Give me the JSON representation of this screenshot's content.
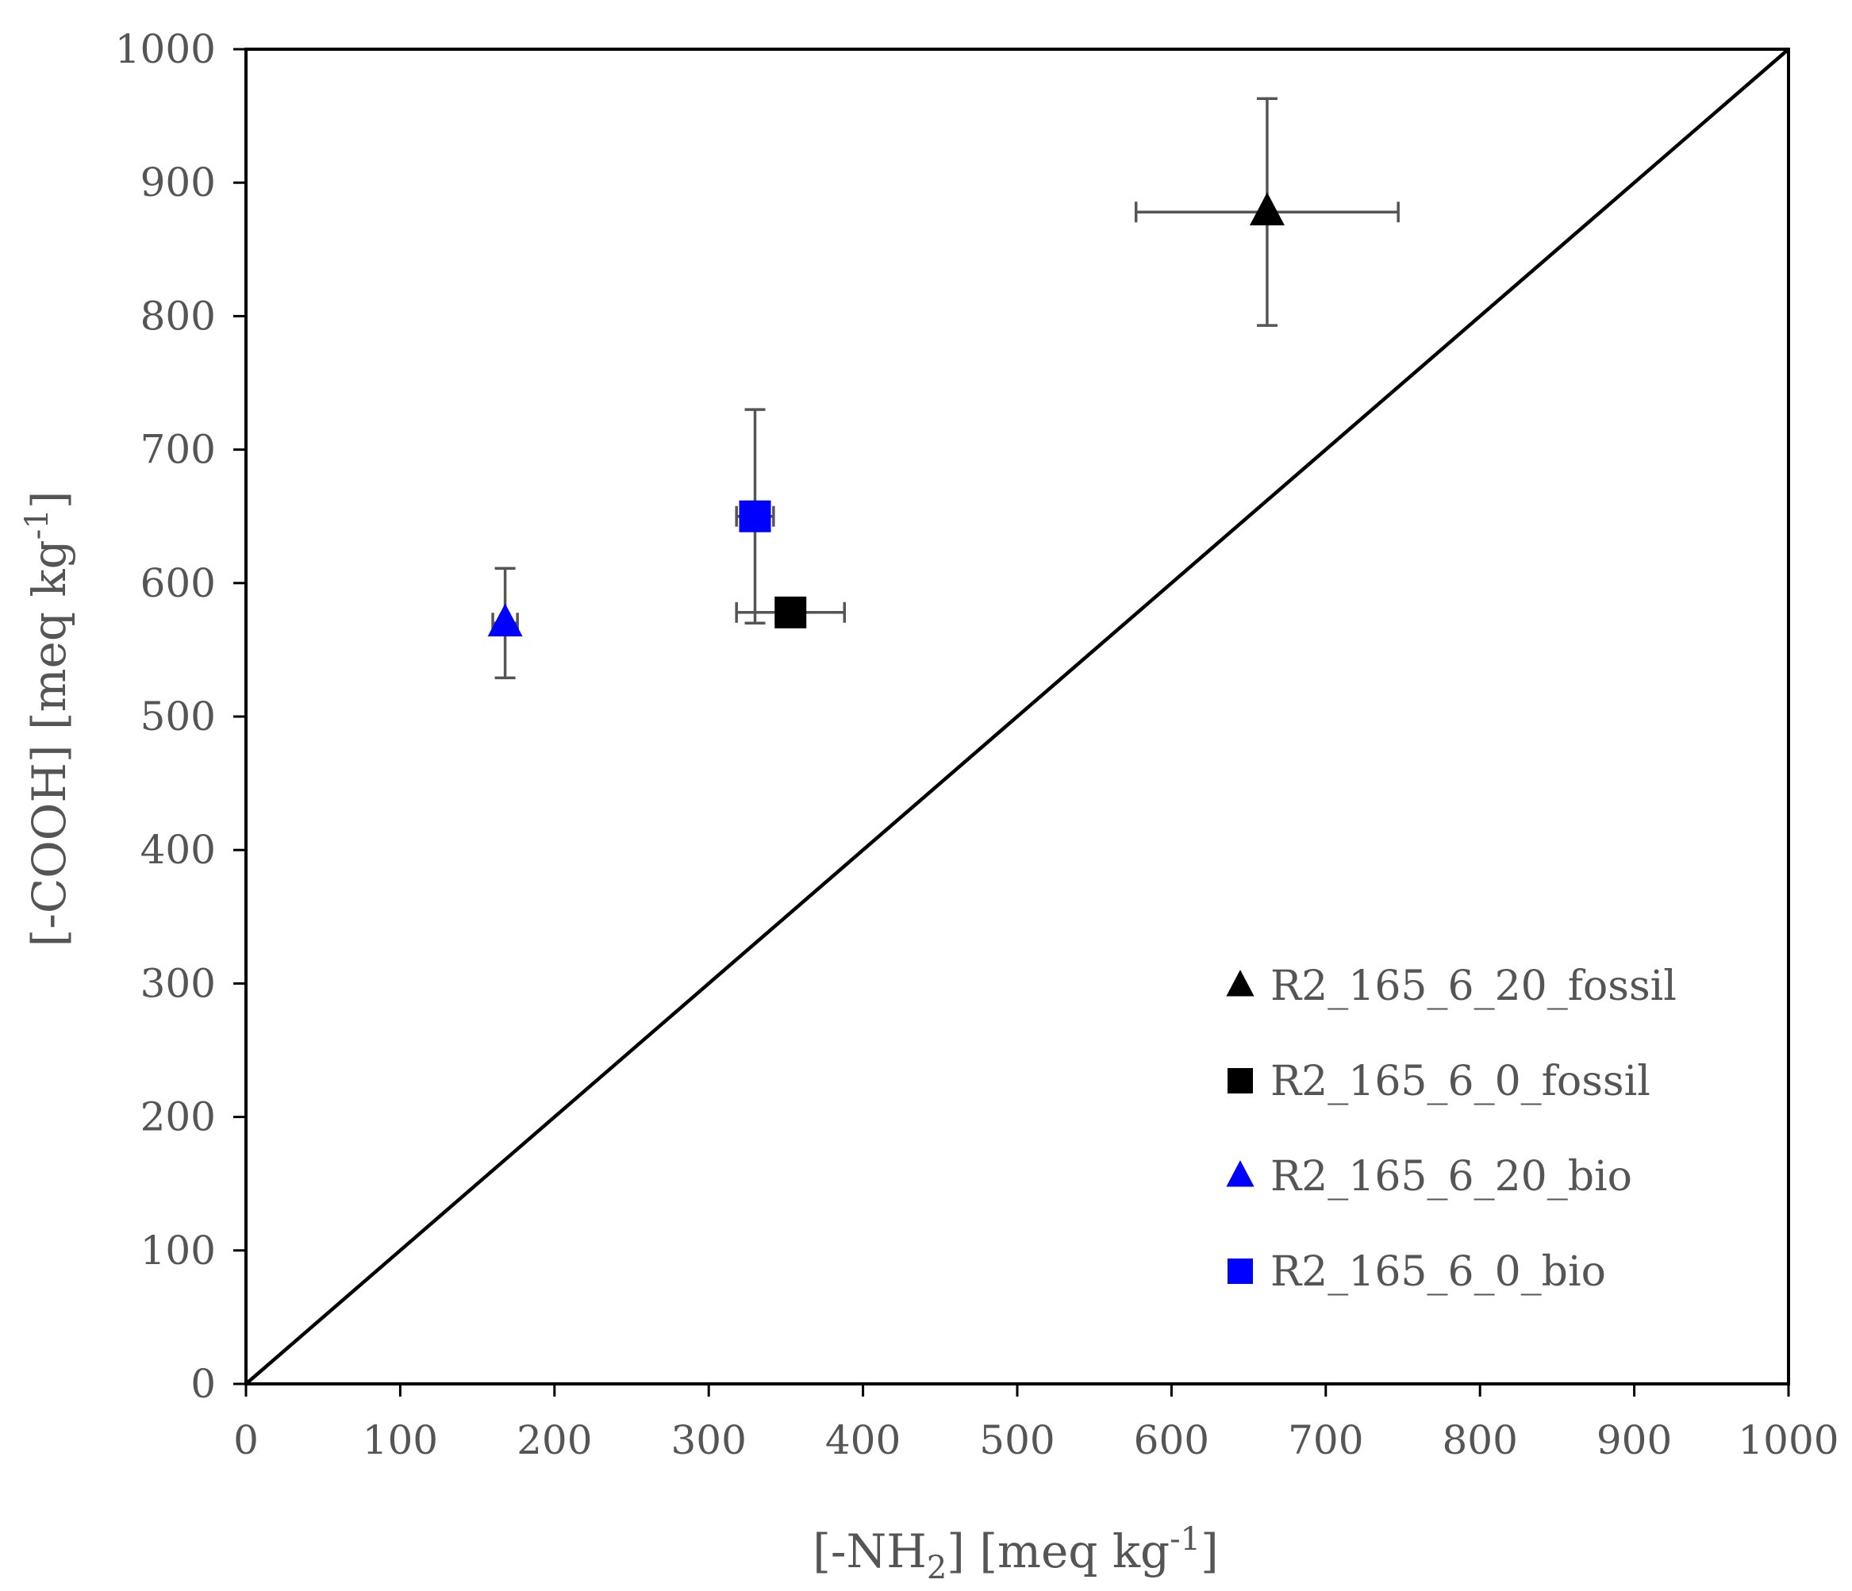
{
  "chart_data": {
    "type": "scatter",
    "title": "",
    "xlabel": {
      "prefix": "[-NH",
      "sub": "2",
      "middle": "] [meq kg",
      "sup": "-1",
      "suffix": "]"
    },
    "ylabel": {
      "prefix": "[-COOH] [meq kg",
      "sup": "-1",
      "suffix": "]"
    },
    "xlim": [
      0,
      1000
    ],
    "ylim": [
      0,
      1000
    ],
    "xticks": [
      "0",
      "100",
      "200",
      "300",
      "400",
      "500",
      "600",
      "700",
      "800",
      "900",
      "1000"
    ],
    "yticks": [
      "0",
      "100",
      "200",
      "300",
      "400",
      "500",
      "600",
      "700",
      "800",
      "900",
      "1000"
    ],
    "grid": false,
    "legend_position": "bottom-right",
    "reference_line": {
      "from": [
        0,
        0
      ],
      "to": [
        1000,
        1000
      ]
    },
    "series": [
      {
        "name": "R2_165_6_20_fossil",
        "marker": "triangle",
        "color": "#000000",
        "x": 662,
        "y": 878,
        "xerr": 85,
        "yerr": 85
      },
      {
        "name": "R2_165_6_0_fossil",
        "marker": "square",
        "color": "#000000",
        "x": 353,
        "y": 578,
        "xerr": 35,
        "yerr": 6
      },
      {
        "name": "R2_165_6_20_bio",
        "marker": "triangle",
        "color": "#0000ff",
        "x": 168,
        "y": 570,
        "xerr": 8,
        "yerr": 41
      },
      {
        "name": "R2_165_6_0_bio",
        "marker": "square",
        "color": "#0000ff",
        "x": 330,
        "y": 650,
        "xerr": 12,
        "yerr": 80
      }
    ]
  }
}
